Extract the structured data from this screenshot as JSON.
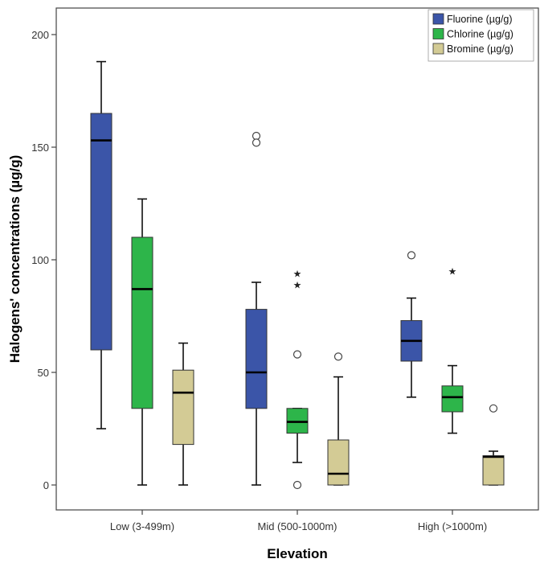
{
  "chart_data": {
    "type": "boxplot",
    "title": "",
    "xlabel": "Elevation",
    "ylabel": "Halogens' concentrations (µg/g)",
    "ylim": [
      -11,
      211
    ],
    "yticks": [
      0,
      50,
      100,
      150,
      200
    ],
    "grid": false,
    "legend_position": "top-right",
    "categories": [
      "Low (3-499m)",
      "Mid (500-1000m)",
      "High (>1000m)"
    ],
    "series": [
      {
        "name": "Fluorine (µg/g)",
        "color": "#3b55a8",
        "boxes": [
          {
            "min": 25,
            "q1": 60,
            "median": 153,
            "q3": 165,
            "max": 188,
            "outliers": [],
            "extremes": []
          },
          {
            "min": 0,
            "q1": 34,
            "median": 50,
            "q3": 78,
            "max": 90,
            "outliers": [
              155,
              152
            ],
            "extremes": []
          },
          {
            "min": 39,
            "q1": 55,
            "median": 64,
            "q3": 73,
            "max": 83,
            "outliers": [
              102
            ],
            "extremes": []
          }
        ]
      },
      {
        "name": "Chlorine (µg/g)",
        "color": "#2db54a",
        "boxes": [
          {
            "min": 0,
            "q1": 34,
            "median": 87,
            "q3": 110,
            "max": 127,
            "outliers": [],
            "extremes": []
          },
          {
            "min": 10,
            "q1": 23,
            "median": 28,
            "q3": 34,
            "max": 34,
            "outliers": [
              58,
              0
            ],
            "extremes": [
              94,
              89
            ]
          },
          {
            "min": 23,
            "q1": 32.5,
            "median": 39,
            "q3": 44,
            "max": 53,
            "outliers": [],
            "extremes": [
              95
            ]
          }
        ]
      },
      {
        "name": "Bromine (µg/g)",
        "color": "#d3cb95",
        "boxes": [
          {
            "min": 0,
            "q1": 18,
            "median": 41,
            "q3": 51,
            "max": 63,
            "outliers": [],
            "extremes": []
          },
          {
            "min": 0,
            "q1": 0,
            "median": 5,
            "q3": 20,
            "max": 48,
            "outliers": [
              57
            ],
            "extremes": []
          },
          {
            "min": 0,
            "q1": 0,
            "median": 12.5,
            "q3": 13,
            "max": 15,
            "outliers": [
              34
            ],
            "extremes": []
          }
        ]
      }
    ]
  }
}
